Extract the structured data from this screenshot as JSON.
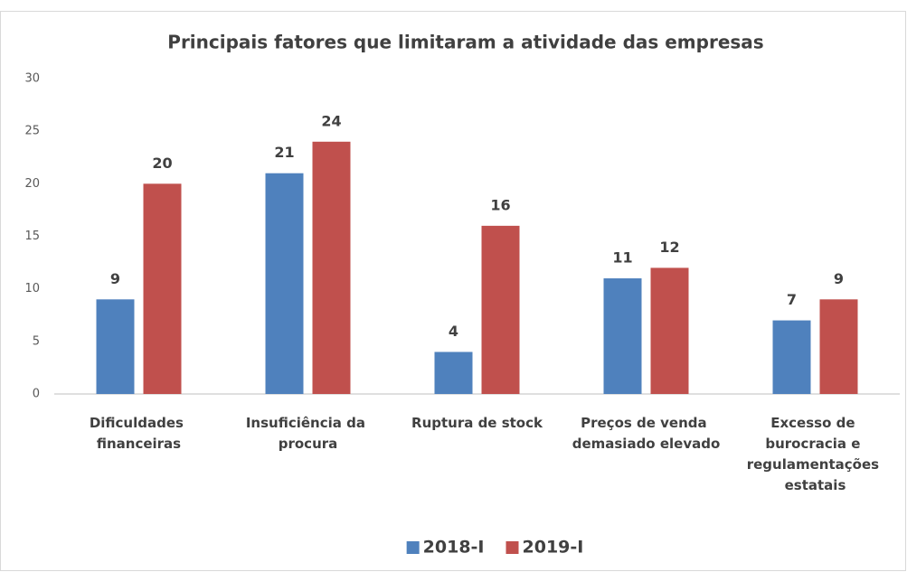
{
  "chart_data": {
    "type": "bar",
    "title": "Principais fatores que limitaram a atividade das empresas",
    "categories": [
      "Dificuldades financeiras",
      "Insuficiência da procura",
      "Ruptura de stock",
      "Preços de venda demasiado elevado",
      "Excesso de burocracia e regulamentações estatais"
    ],
    "series": [
      {
        "name": "2018-I",
        "color": "#4f81bd",
        "values": [
          9,
          21,
          4,
          11,
          7
        ]
      },
      {
        "name": "2019-I",
        "color": "#c0504d",
        "values": [
          20,
          24,
          16,
          12,
          9
        ]
      }
    ],
    "ylim": [
      0,
      30
    ],
    "yticks": [
      0,
      5,
      10,
      15,
      20,
      25,
      30
    ],
    "grid": false,
    "legend": "bottom"
  }
}
